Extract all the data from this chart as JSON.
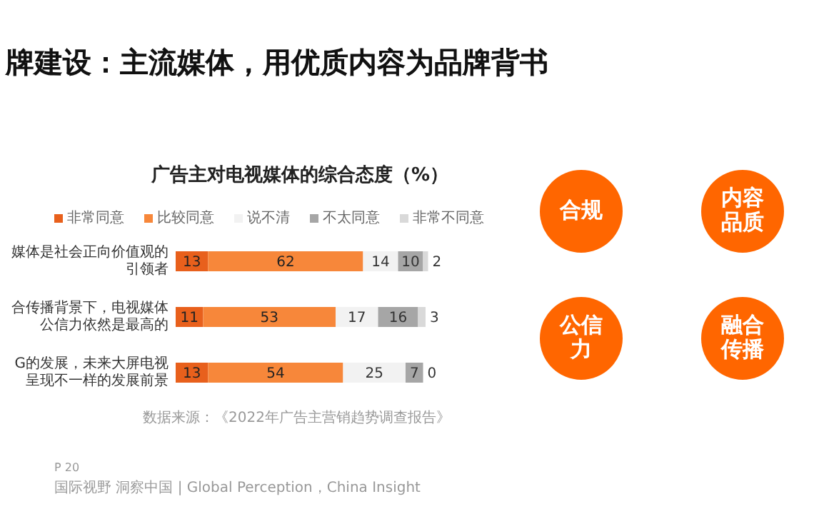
{
  "chart_data": [
    {
      "type": "bar",
      "orientation": "horizontal",
      "stacked": true,
      "title": "广告主对电视媒体的综合态度（%）",
      "categories": [
        "媒体是社会正向价值观的引领者",
        "合传播背景下，电视媒体公信力依然是最高的",
        "G的发展，未来大屏电视呈现不一样的发展前景"
      ],
      "series": [
        {
          "name": "非常同意",
          "color": "#e8601c",
          "values": [
            13,
            11,
            13
          ]
        },
        {
          "name": "比较同意",
          "color": "#f7873a",
          "values": [
            62,
            53,
            54
          ]
        },
        {
          "name": "说不清",
          "color": "#f2f2f2",
          "values": [
            14,
            17,
            25
          ]
        },
        {
          "name": "不太同意",
          "color": "#a6a6a6",
          "values": [
            10,
            16,
            7
          ]
        },
        {
          "name": "非常不同意",
          "color": "#d9d9d9",
          "values": [
            2,
            3,
            0
          ]
        }
      ],
      "data_labels": true,
      "legend": "top",
      "annotations": [
        "牌建设：主流媒体，用优质内容为品牌背书",
        "数据来源：《2022年广告主营销趋势调查报告》",
        "P 20",
        "国际视野 洞察中国 | Global Perception，China Insight"
      ]
    },
    {
      "type": "other",
      "annotations": [
        "合规",
        "内容品质",
        "公信力",
        "融合传播"
      ]
    }
  ]
}
